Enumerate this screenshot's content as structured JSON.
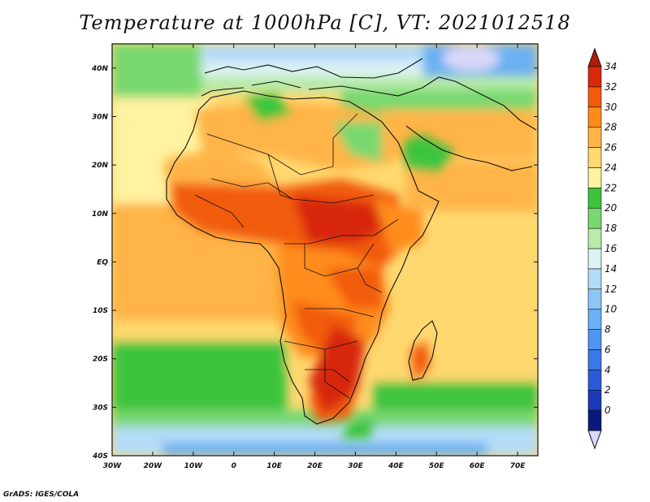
{
  "map": {
    "title": "Temperature at 1000hPa [C], VT: 2021012518",
    "credit": "GrADS: IGES/COLA",
    "lat_labels": [
      "40N",
      "30N",
      "20N",
      "10N",
      "EQ",
      "10S",
      "20S",
      "30S",
      "40S"
    ],
    "lat_values": [
      40,
      30,
      20,
      10,
      0,
      -10,
      -20,
      -30,
      -40
    ],
    "lon_labels": [
      "30W",
      "20W",
      "10W",
      "0",
      "10E",
      "20E",
      "30E",
      "40E",
      "50E",
      "60E",
      "70E"
    ],
    "lon_values": [
      -30,
      -20,
      -10,
      0,
      10,
      20,
      30,
      40,
      50,
      60,
      70
    ],
    "extent": {
      "lon_min": -30,
      "lon_max": 75,
      "lat_min": -40,
      "lat_max": 45
    }
  },
  "colorbar": {
    "labels": [
      "0",
      "2",
      "4",
      "6",
      "8",
      "10",
      "12",
      "14",
      "16",
      "18",
      "20",
      "22",
      "24",
      "26",
      "28",
      "30",
      "32",
      "34"
    ],
    "colors": [
      "#0a1a7a",
      "#1a3ab8",
      "#2a5ad8",
      "#3a78e6",
      "#4f96ee",
      "#6ab0f2",
      "#8cc6f5",
      "#b4dcf8",
      "#dcf2f4",
      "#b8eaa8",
      "#78d870",
      "#3cc43c",
      "#fff2a0",
      "#ffd870",
      "#ffb447",
      "#ff8c1a",
      "#f25c0a",
      "#d8280a"
    ],
    "under_color": "#d8d8f8",
    "over_color": "#b01a0a"
  }
}
